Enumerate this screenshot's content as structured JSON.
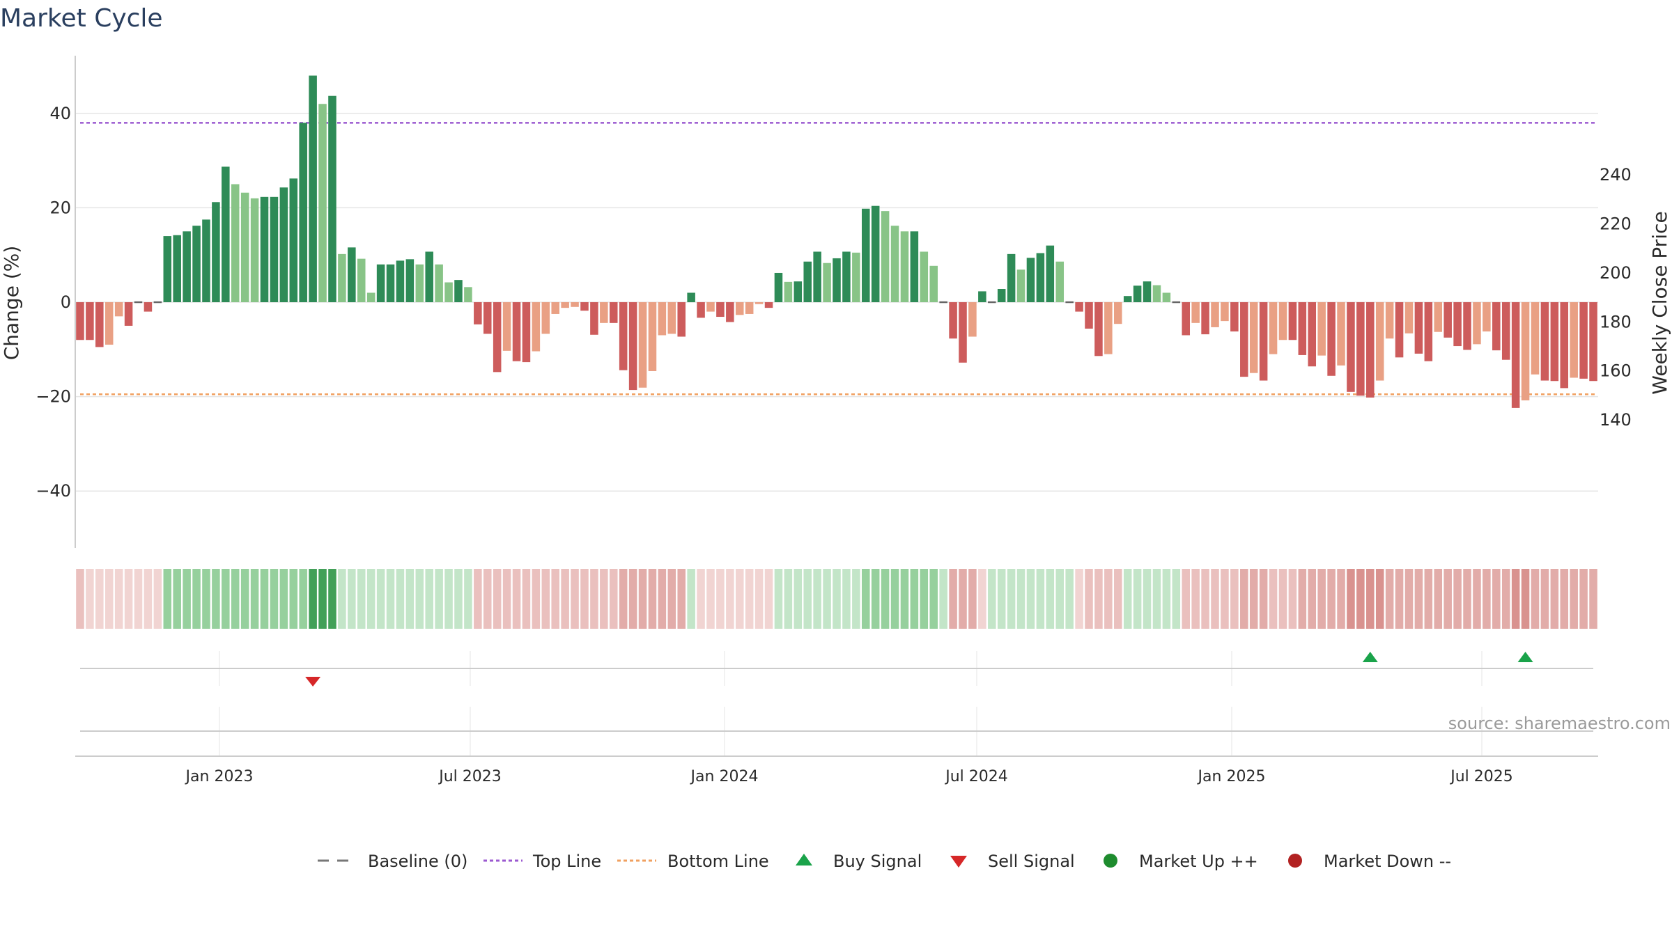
{
  "chart_data": {
    "type": "bar",
    "title": "Market Cycle",
    "ylabel": "Change (%)",
    "y2label": "Weekly Close Price",
    "ylim": [
      -52,
      52
    ],
    "y2lim": [
      125,
      255
    ],
    "yticks": [
      "40",
      "20",
      "0",
      "−20",
      "−40"
    ],
    "y2ticks": [
      "240",
      "220",
      "200",
      "180",
      "160",
      "140"
    ],
    "grid": true,
    "top_line": 38,
    "bottom_line": -19.5,
    "date_ticks": [
      "Jan 2023",
      "Jul 2023",
      "Jan 2024",
      "Jul 2024",
      "Jan 2025",
      "Jul 2025"
    ],
    "weekly_change": [
      -8,
      -8,
      -9.5,
      -9,
      -3,
      -5,
      0,
      -2,
      0,
      14,
      14.2,
      15,
      16.2,
      17.5,
      21.2,
      28.7,
      25,
      23.2,
      22,
      22.3,
      22.3,
      24.3,
      26.2,
      38,
      48,
      42,
      43.7,
      10.2,
      11.6,
      9.2,
      2,
      8,
      8,
      8.8,
      9.1,
      8,
      10.7,
      8,
      4.2,
      4.7,
      3.2,
      -4.7,
      -6.7,
      -14.8,
      -10.3,
      -12.5,
      -12.7,
      -10.4,
      -6.7,
      -2.5,
      -1.2,
      -1,
      -1.8,
      -6.9,
      -4.4,
      -4.4,
      -14.4,
      -18.6,
      -18.1,
      -14.6,
      -7,
      -6.7,
      -7.3,
      2,
      -3.3,
      -2,
      -3.1,
      -4.2,
      -2.7,
      -2.5,
      -0.4,
      -1.2,
      6.2,
      4.3,
      4.4,
      8.6,
      10.7,
      8.3,
      9.3,
      10.7,
      10.5,
      19.8,
      20.4,
      19.3,
      16.2,
      15,
      15,
      10.7,
      7.7,
      0,
      -7.7,
      -12.8,
      -7.3,
      2.3,
      0,
      2.8,
      10.2,
      6.9,
      9.4,
      10.4,
      12,
      8.6,
      0,
      -2,
      -5.6,
      -11.4,
      -11,
      -4.6,
      1.3,
      3.5,
      4.4,
      3.6,
      2,
      0,
      -7,
      -4.4,
      -6.8,
      -5.3,
      -4,
      -6.2,
      -15.8,
      -15,
      -16.6,
      -11,
      -8,
      -8,
      -11.2,
      -13.6,
      -11.3,
      -15.6,
      -13.4,
      -19,
      -19.8,
      -20.2,
      -16.6,
      -7.7,
      -11.7,
      -6.6,
      -10.9,
      -12.5,
      -6.3,
      -7.5,
      -9.3,
      -10.1,
      -8.9,
      -6.2,
      -10.2,
      -12.2,
      -22.4,
      -20.8,
      -15.3,
      -16.6,
      -16.7,
      -18.2,
      -16,
      -16.2,
      -16.7
    ],
    "band_levels": [
      -2,
      -1,
      -1,
      -1,
      -1,
      -1,
      -1,
      -1,
      -1,
      2,
      2,
      2,
      2,
      2,
      2,
      2,
      2,
      2,
      2,
      2,
      2,
      2,
      2,
      2,
      3,
      3,
      3,
      1,
      1,
      1,
      1,
      1,
      1,
      1,
      1,
      1,
      1,
      1,
      1,
      1,
      1,
      -2,
      -2,
      -2,
      -2,
      -2,
      -2,
      -2,
      -2,
      -2,
      -2,
      -2,
      -2,
      -2,
      -2,
      -2,
      -3,
      -3,
      -3,
      -3,
      -3,
      -3,
      -3,
      1,
      -1,
      -1,
      -1,
      -1,
      -1,
      -1,
      -1,
      -1,
      1,
      1,
      1,
      1,
      1,
      1,
      1,
      1,
      1,
      2,
      2,
      2,
      2,
      2,
      2,
      2,
      2,
      1,
      -3,
      -3,
      -3,
      -1,
      1,
      1,
      1,
      1,
      1,
      1,
      1,
      1,
      1,
      -1,
      -2,
      -2,
      -2,
      -2,
      1,
      1,
      1,
      1,
      1,
      1,
      -2,
      -2,
      -2,
      -2,
      -2,
      -2,
      -3,
      -3,
      -3,
      -2,
      -2,
      -2,
      -3,
      -3,
      -3,
      -3,
      -3,
      -4,
      -4,
      -4,
      -4,
      -3,
      -3,
      -3,
      -3,
      -3,
      -3,
      -3,
      -3,
      -3,
      -3,
      -3,
      -3,
      -3,
      -4,
      -4,
      -3,
      -3,
      -3,
      -3,
      -3,
      -3,
      -3
    ],
    "buy_signals": [
      133,
      149
    ],
    "sell_signals": [
      24
    ],
    "legend": [
      {
        "label": "Baseline (0)",
        "symbol": "dash",
        "color": "#777777"
      },
      {
        "label": "Top Line",
        "symbol": "dotted",
        "color": "#9b59d0"
      },
      {
        "label": "Bottom Line",
        "symbol": "dotted",
        "color": "#f0a060"
      },
      {
        "label": "Buy Signal",
        "symbol": "triangle-up",
        "color": "#1aa34a"
      },
      {
        "label": "Sell Signal",
        "symbol": "triangle-down",
        "color": "#d62728"
      },
      {
        "label": "Market Up ++",
        "symbol": "circle",
        "color": "#1e8c2e"
      },
      {
        "label": "Market Down --",
        "symbol": "circle",
        "color": "#b22222"
      }
    ],
    "source": "source: sharemaestro.com",
    "colors": {
      "strong_up": "#2e8b57",
      "weak_up": "#88c487",
      "strong_down": "#cd5c5c",
      "weak_down": "#e9a084",
      "top_line": "#9b59d0",
      "bottom_line": "#f0a060",
      "grid": "#e5e5e5",
      "baseline": "#666666"
    }
  }
}
